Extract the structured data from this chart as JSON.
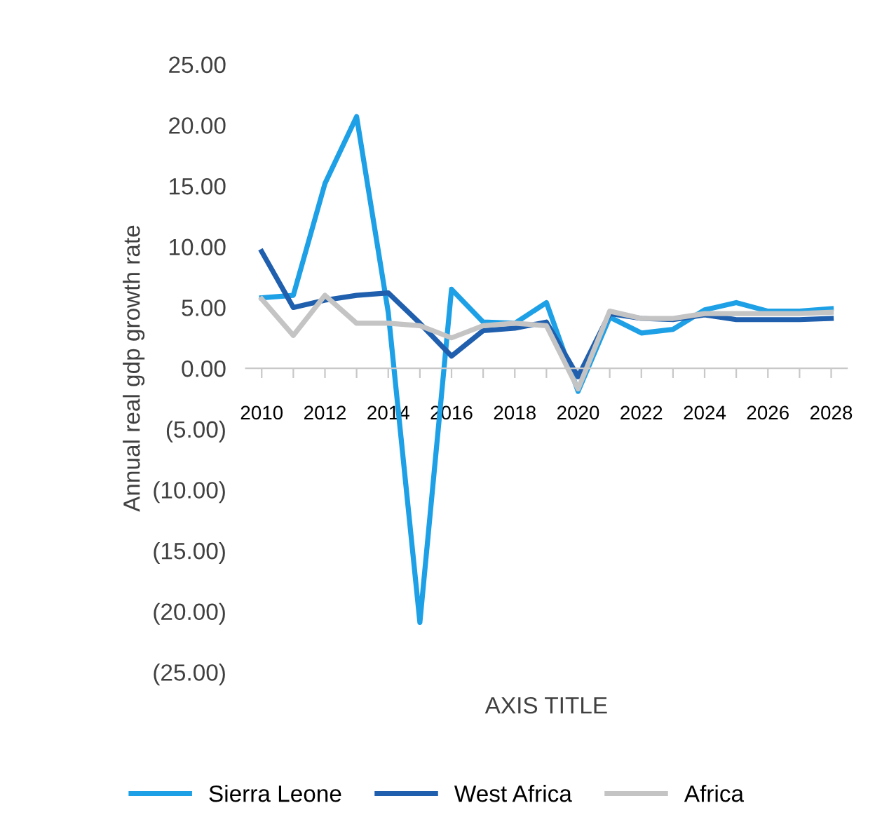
{
  "chart_data": {
    "type": "line",
    "xlabel": "AXIS TITLE",
    "ylabel": "Annual real gdp growth rate",
    "categories": [
      "2010",
      null,
      "2012",
      null,
      "2014",
      null,
      "2016",
      null,
      "2018",
      null,
      "2020",
      null,
      "2022",
      null,
      "2024",
      null,
      "2026",
      null,
      "2028"
    ],
    "series": [
      {
        "name": "Sierra Leone",
        "color": "#1ea0e6",
        "values": [
          5.8,
          6.0,
          15.2,
          20.7,
          4.6,
          -20.9,
          6.5,
          3.8,
          3.7,
          5.4,
          -1.9,
          4.2,
          2.9,
          3.2,
          4.8,
          5.4,
          4.7,
          4.7,
          4.9
        ]
      },
      {
        "name": "West Africa",
        "color": "#1f5fad",
        "values": [
          9.6,
          5.0,
          5.6,
          6.0,
          6.2,
          3.7,
          1.0,
          3.1,
          3.3,
          3.8,
          -0.7,
          4.5,
          4.1,
          4.0,
          4.4,
          4.0,
          4.0,
          4.0,
          4.1
        ]
      },
      {
        "name": "Africa",
        "color": "#c4c4c4",
        "values": [
          5.7,
          2.7,
          6.0,
          3.7,
          3.7,
          3.5,
          2.5,
          3.5,
          3.7,
          3.5,
          -1.7,
          4.7,
          4.1,
          4.1,
          4.5,
          4.5,
          4.5,
          4.5,
          4.6
        ]
      }
    ],
    "ylim": [
      -25,
      25
    ],
    "yticks": [
      {
        "value": 25,
        "label": "25.00"
      },
      {
        "value": 20,
        "label": "20.00"
      },
      {
        "value": 15,
        "label": "15.00"
      },
      {
        "value": 10,
        "label": "10.00"
      },
      {
        "value": 5,
        "label": "5.00"
      },
      {
        "value": 0,
        "label": "0.00"
      },
      {
        "value": -5,
        "label": "(5.00)"
      },
      {
        "value": -10,
        "label": "(10.00)"
      },
      {
        "value": -15,
        "label": "(15.00)"
      },
      {
        "value": -20,
        "label": "(20.00)"
      },
      {
        "value": -25,
        "label": "(25.00)"
      }
    ],
    "grid": false,
    "legend": "bottom",
    "marker": "none",
    "line_style": "solid"
  }
}
